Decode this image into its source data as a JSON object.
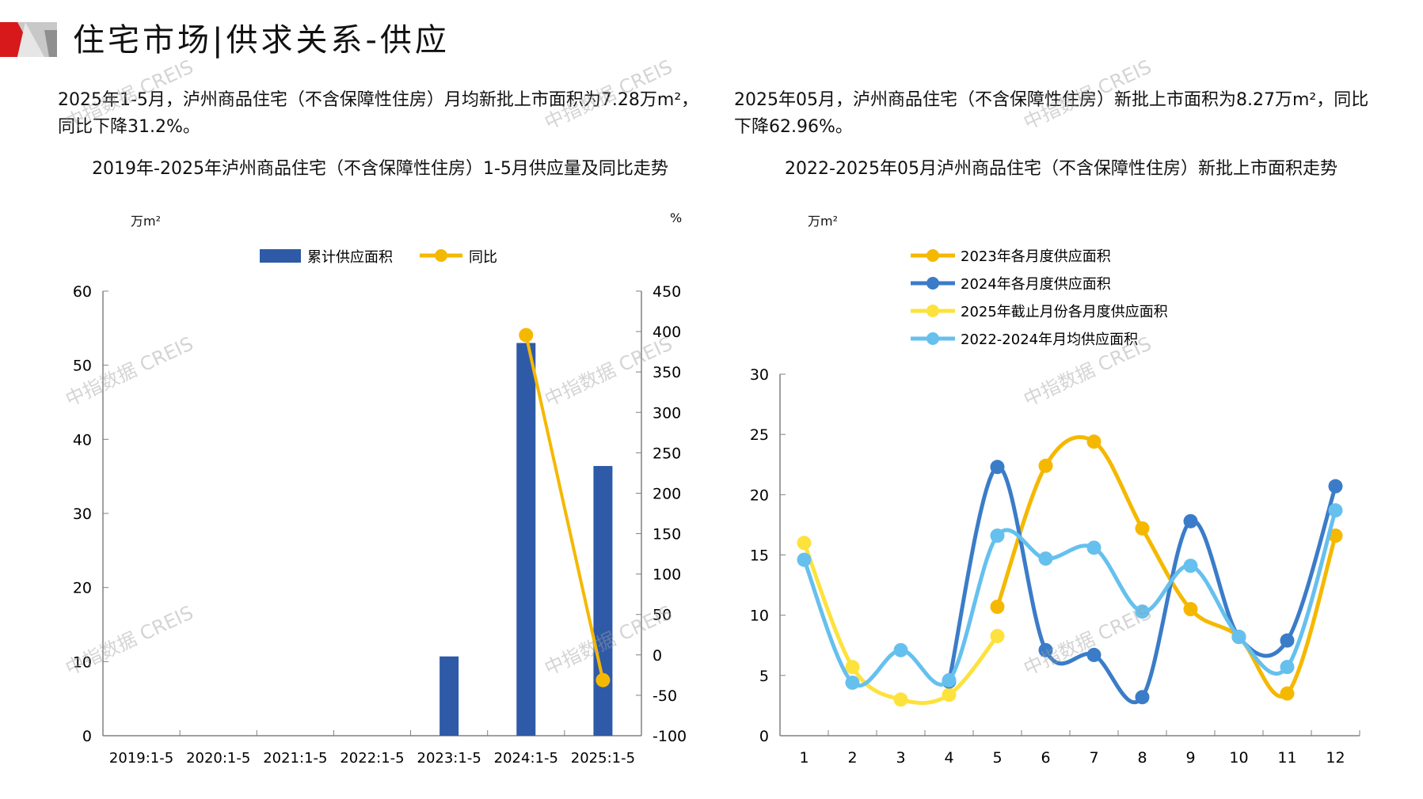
{
  "header": {
    "title": "住宅市场|供求关系-供应"
  },
  "left_panel": {
    "paragraph": "2025年1-5月，泸州商品住宅（不含保障性住房）月均新批上市面积为7.28万m²，同比下降31.2%。",
    "chart_title": "2019年-2025年泸州商品住宅（不含保障性住房）1-5月供应量及同比走势",
    "unit_left": "万m²",
    "unit_right": "%"
  },
  "right_panel": {
    "paragraph": "2025年05月，泸州商品住宅（不含保障性住房）新批上市面积为8.27万m²，同比下降62.96%。",
    "chart_title": "2022-2025年05月泸州商品住宅（不含保障性住房）新批上市面积走势",
    "unit_left": "万m²"
  },
  "watermark": "中指数据 CREIS",
  "colors": {
    "bar": "#2E5AA8",
    "yoy": "#F5B800",
    "s2023": "#F5B800",
    "s2024": "#3A7CC8",
    "s2025": "#FDE23E",
    "savg": "#66C0EE",
    "brand_red": "#D7191C",
    "axis": "#808080"
  },
  "chart_data": [
    {
      "type": "bar",
      "title": "2019年-2025年泸州商品住宅（不含保障性住房）1-5月供应量及同比走势",
      "categories": [
        "2019:1-5",
        "2020:1-5",
        "2021:1-5",
        "2022:1-5",
        "2023:1-5",
        "2024:1-5",
        "2025:1-5"
      ],
      "series": [
        {
          "name": "累计供应面积",
          "type": "bar",
          "axis": "left",
          "values": [
            0,
            0,
            0,
            0,
            10.7,
            53.0,
            36.4
          ]
        },
        {
          "name": "同比",
          "type": "line",
          "axis": "right",
          "values": [
            null,
            null,
            null,
            null,
            null,
            395.6,
            -31.2
          ]
        }
      ],
      "ylabel": "万m²",
      "y2label": "%",
      "ylim": [
        0,
        60
      ],
      "yticks": [
        0,
        10,
        20,
        30,
        40,
        50,
        60
      ],
      "y2lim": [
        -100,
        450
      ],
      "y2ticks": [
        -100,
        -50,
        0,
        50,
        100,
        150,
        200,
        250,
        300,
        350,
        400,
        450
      ],
      "legend": "top-center",
      "grid": false
    },
    {
      "type": "line",
      "title": "2022-2025年05月泸州商品住宅（不含保障性住房）新批上市面积走势",
      "categories": [
        "1",
        "2",
        "3",
        "4",
        "5",
        "6",
        "7",
        "8",
        "9",
        "10",
        "11",
        "12"
      ],
      "series": [
        {
          "name": "2023年各月度供应面积",
          "values": [
            null,
            null,
            null,
            null,
            10.7,
            22.4,
            24.4,
            17.2,
            10.5,
            8.2,
            3.5,
            16.6
          ]
        },
        {
          "name": "2024年各月度供应面积",
          "values": [
            null,
            null,
            null,
            4.5,
            22.3,
            7.1,
            6.7,
            3.2,
            17.8,
            8.2,
            7.9,
            20.7
          ]
        },
        {
          "name": "2025年截止月份各月度供应面积",
          "values": [
            16.0,
            5.7,
            3.0,
            3.4,
            8.27,
            null,
            null,
            null,
            null,
            null,
            null,
            null
          ]
        },
        {
          "name": "2022-2024年月均供应面积",
          "values": [
            14.6,
            4.4,
            7.1,
            4.6,
            16.6,
            14.7,
            15.6,
            10.3,
            14.1,
            8.2,
            5.7,
            18.7
          ]
        }
      ],
      "ylabel": "万m²",
      "ylim": [
        0,
        30
      ],
      "yticks": [
        0,
        5,
        10,
        15,
        20,
        25,
        30
      ],
      "legend": "top-left",
      "grid": false
    }
  ]
}
